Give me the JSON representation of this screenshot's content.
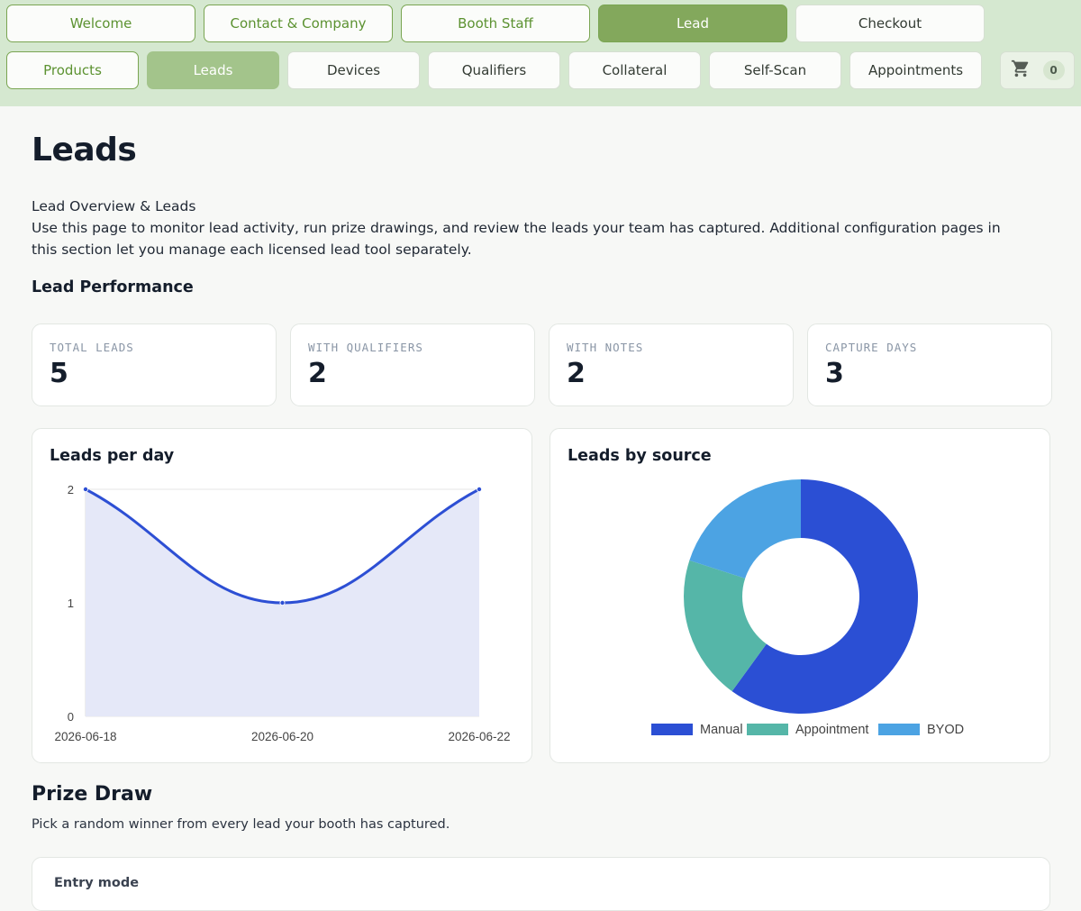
{
  "nav": {
    "row1": [
      {
        "label": "Welcome",
        "state": "outline"
      },
      {
        "label": "Contact & Company",
        "state": "outline"
      },
      {
        "label": "Booth Staff",
        "state": "outline"
      },
      {
        "label": "Lead",
        "state": "active"
      },
      {
        "label": "Checkout",
        "state": "plain"
      }
    ],
    "row2": [
      {
        "label": "Products",
        "state": "outline"
      },
      {
        "label": "Leads",
        "state": "active-soft"
      },
      {
        "label": "Devices",
        "state": "plain"
      },
      {
        "label": "Qualifiers",
        "state": "plain"
      },
      {
        "label": "Collateral",
        "state": "plain"
      },
      {
        "label": "Self-Scan",
        "state": "plain"
      },
      {
        "label": "Appointments",
        "state": "plain"
      }
    ],
    "cart": {
      "icon": "cart-icon",
      "count": "0"
    }
  },
  "page": {
    "title": "Leads",
    "intro_line1": "Lead Overview & Leads",
    "intro_line2": "Use this page to monitor lead activity, run prize drawings, and review the leads your team has captured. Additional configuration pages in this section let you manage each licensed lead tool separately."
  },
  "performance": {
    "heading": "Lead Performance",
    "stats": [
      {
        "label": "TOTAL LEADS",
        "value": "5"
      },
      {
        "label": "WITH QUALIFIERS",
        "value": "2"
      },
      {
        "label": "WITH NOTES",
        "value": "2"
      },
      {
        "label": "CAPTURE DAYS",
        "value": "3"
      }
    ]
  },
  "chart_data": [
    {
      "type": "line",
      "title": "Leads per day",
      "x": [
        "2026-06-18",
        "2026-06-20",
        "2026-06-22"
      ],
      "series": [
        {
          "values": [
            2,
            1,
            2
          ],
          "color": "#2d4fd4",
          "fill": "#e5e8f8"
        }
      ],
      "ylim": [
        0,
        2
      ],
      "yticks": [
        0,
        1,
        2
      ],
      "grid": true
    },
    {
      "type": "pie",
      "title": "Leads by source",
      "categories": [
        "Manual",
        "Appointment",
        "BYOD"
      ],
      "values": [
        3,
        1,
        1
      ],
      "colors": [
        "#2b4fd4",
        "#55b6a8",
        "#4ca3e3"
      ],
      "donut": true,
      "legend": "bottom"
    }
  ],
  "prize": {
    "heading": "Prize Draw",
    "subtitle": "Pick a random winner from every lead your booth has captured.",
    "entry_label": "Entry mode"
  },
  "colors": {
    "accent": "#83a85c",
    "topbar_bg": "#d5e8d0"
  }
}
